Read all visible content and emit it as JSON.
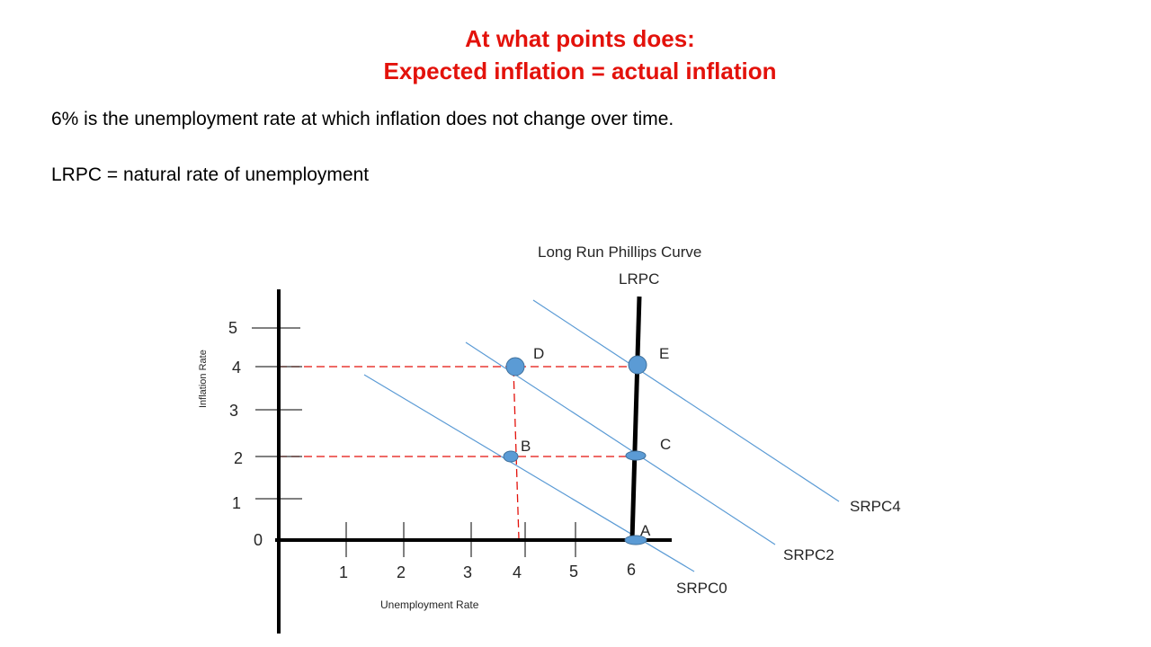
{
  "title": {
    "line1": "At what points does:",
    "line2": "Expected inflation = actual inflation"
  },
  "statement": "6% is the unemployment rate at which inflation does not change over time.",
  "definition": "LRPC = natural rate of unemployment",
  "diagram": {
    "lrpc_title": "Long Run Phillips Curve",
    "lrpc_label": "LRPC",
    "y_axis_label": "Inflation Rate",
    "x_axis_label": "Unemployment Rate",
    "origin_label": "0",
    "y_ticks": [
      "1",
      "2",
      "3",
      "4",
      "5"
    ],
    "x_ticks": [
      "1",
      "2",
      "3",
      "4",
      "5",
      "6"
    ],
    "curves": [
      {
        "name": "SRPC0",
        "expected_inflation": 0
      },
      {
        "name": "SRPC2",
        "expected_inflation": 2
      },
      {
        "name": "SRPC4",
        "expected_inflation": 4
      }
    ],
    "points": [
      {
        "label": "A",
        "unemployment": 6,
        "inflation": 0
      },
      {
        "label": "B",
        "unemployment": 4,
        "inflation": 2
      },
      {
        "label": "C",
        "unemployment": 6,
        "inflation": 2
      },
      {
        "label": "D",
        "unemployment": 4,
        "inflation": 4
      },
      {
        "label": "E",
        "unemployment": 6,
        "inflation": 4
      }
    ],
    "colors": {
      "title": "#e3120b",
      "curve": "#5b9bd5",
      "guide": "#e3120b",
      "point": "#5b9bd5",
      "point_stroke": "#41719c",
      "axis": "#000000",
      "text": "#262626"
    }
  }
}
